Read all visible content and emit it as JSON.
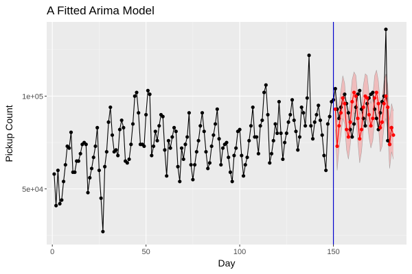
{
  "chart_data": {
    "type": "line",
    "title": "A Fitted Arima Model",
    "xlabel": "Day",
    "ylabel": "Pickup Count",
    "xlim": [
      -3,
      189
    ],
    "ylim": [
      20000,
      140000
    ],
    "x_ticks": [
      0,
      50,
      100,
      150
    ],
    "x_tick_labels": [
      "0",
      "50",
      "100",
      "150"
    ],
    "y_ticks": [
      50000,
      100000
    ],
    "y_tick_labels": [
      "5e+04",
      "1e+05"
    ],
    "grid": true,
    "legend": "none",
    "vline": {
      "x": 150,
      "color": "#0000cc"
    },
    "colors": {
      "panel": "#ebebeb",
      "grid_major": "#ffffff",
      "grid_minor": "#f5f5f5",
      "observed": "#000000",
      "forecast": "#ff0000",
      "band_fill": "#ff000033",
      "band_stroke": "#7f7f7f"
    },
    "series": [
      {
        "x": [
          1,
          2,
          3,
          4,
          5,
          6,
          7,
          8,
          9,
          10,
          11,
          12,
          13,
          14,
          15,
          16,
          17,
          18,
          19,
          20,
          21,
          22,
          23,
          24,
          25,
          26,
          27,
          28,
          29,
          30,
          31,
          32,
          33,
          34,
          35,
          36,
          37,
          38,
          39,
          40,
          41,
          42,
          43,
          44,
          45,
          46,
          47,
          48,
          49,
          50,
          51,
          52,
          53,
          54,
          55,
          56,
          57,
          58,
          59,
          60,
          61,
          62,
          63,
          64,
          65,
          66,
          67,
          68,
          69,
          70,
          71,
          72,
          73,
          74,
          75,
          76,
          77,
          78,
          79,
          80,
          81,
          82,
          83,
          84,
          85,
          86,
          87,
          88,
          89,
          90,
          91,
          92,
          93,
          94,
          95,
          96,
          97,
          98,
          99,
          100,
          101,
          102,
          103,
          104,
          105,
          106,
          107,
          108,
          109,
          110,
          111,
          112,
          113,
          114,
          115,
          116,
          117,
          118,
          119,
          120,
          121,
          122,
          123,
          124,
          125,
          126,
          127,
          128,
          129,
          130,
          131,
          132,
          133,
          134,
          135,
          136,
          137,
          138,
          139,
          140,
          141,
          142,
          143,
          144,
          145,
          146,
          147,
          148,
          149,
          150,
          151,
          152,
          153,
          154,
          155,
          156,
          157,
          158,
          159,
          160,
          161,
          162,
          163,
          164,
          165,
          166,
          167,
          168,
          169,
          170,
          171,
          172,
          173,
          174,
          175,
          176,
          177,
          178,
          179,
          180,
          181
        ],
        "values": [
          58000,
          41000,
          60000,
          42000,
          44000,
          54000,
          63000,
          73000,
          72000,
          80500,
          59000,
          59000,
          65000,
          65000,
          69000,
          74000,
          75000,
          74000,
          48000,
          56000,
          61000,
          67000,
          73000,
          83000,
          60000,
          45000,
          27000,
          62000,
          70000,
          86000,
          94000,
          79000,
          70000,
          71000,
          68000,
          82000,
          87000,
          83000,
          65000,
          64000,
          66000,
          74000,
          85000,
          100000,
          102000,
          91000,
          74000,
          74000,
          73000,
          90000,
          103000,
          101000,
          68000,
          73000,
          81000,
          76000,
          84000,
          90000,
          89000,
          71000,
          57000,
          76000,
          72000,
          78000,
          83000,
          81000,
          62000,
          54000,
          72000,
          66000,
          74000,
          78000,
          91000,
          63000,
          55000,
          63000,
          70000,
          76000,
          84000,
          91000,
          81000,
          70000,
          61000,
          64000,
          73000,
          79000,
          85000,
          93000,
          77000,
          63000,
          72000,
          74000,
          75000,
          67000,
          59000,
          54000,
          68000,
          72000,
          81000,
          82000,
          68000,
          57000,
          63000,
          67000,
          76000,
          84000,
          94000,
          78000,
          78000,
          69000,
          84000,
          87000,
          102000,
          106000,
          90000,
          64000,
          69000,
          76000,
          85000,
          80000,
          97000,
          80000,
          66000,
          75000,
          80000,
          86000,
          90000,
          98000,
          87000,
          81000,
          71000,
          78000,
          94000,
          91000,
          84000,
          99000,
          122000,
          84000,
          77000,
          86000,
          90000,
          95000,
          87000,
          79000,
          68000,
          60000,
          85000,
          89000,
          97000,
          98000,
          104000,
          93000,
          88000,
          94000,
          99000,
          101000,
          96000,
          91000,
          82000,
          78000,
          85000,
          94000,
          101000,
          103000,
          93000,
          88000,
          84000,
          96000,
          99000,
          101000,
          102000,
          93000,
          88000,
          82000,
          91000,
          97000,
          100000,
          136000,
          76000,
          74000,
          83000
        ],
        "color": "#000000"
      },
      {
        "x": [
          151,
          152,
          153,
          154,
          155,
          156,
          157,
          158,
          159,
          160,
          161,
          162,
          163,
          164,
          165,
          166,
          167,
          168,
          169,
          170,
          171,
          172,
          173,
          174,
          175,
          176,
          177,
          178,
          179,
          180,
          181,
          182
        ],
        "values": [
          93000,
          73000,
          84000,
          91000,
          99000,
          96000,
          82000,
          78000,
          86000,
          97000,
          102000,
          100000,
          88000,
          77000,
          82000,
          94000,
          100000,
          99000,
          90000,
          84000,
          88000,
          99000,
          102000,
          96000,
          83000,
          86000,
          96000,
          100000,
          94000,
          74000,
          83000,
          79000
        ],
        "lower": [
          82000,
          60000,
          72000,
          79000,
          88000,
          85000,
          71000,
          66000,
          74000,
          85000,
          91000,
          89000,
          76000,
          64000,
          70000,
          82000,
          88000,
          87000,
          78000,
          72000,
          76000,
          87000,
          90000,
          84000,
          70000,
          73000,
          84000,
          88000,
          82000,
          61000,
          70000,
          66000
        ],
        "upper": [
          104000,
          86000,
          96000,
          103000,
          111000,
          107000,
          93000,
          90000,
          98000,
          109000,
          113000,
          111000,
          100000,
          90000,
          94000,
          106000,
          112000,
          111000,
          102000,
          96000,
          100000,
          111000,
          114000,
          108000,
          96000,
          99000,
          108000,
          112000,
          106000,
          87000,
          96000,
          92000
        ],
        "color": "#ff0000"
      }
    ]
  }
}
